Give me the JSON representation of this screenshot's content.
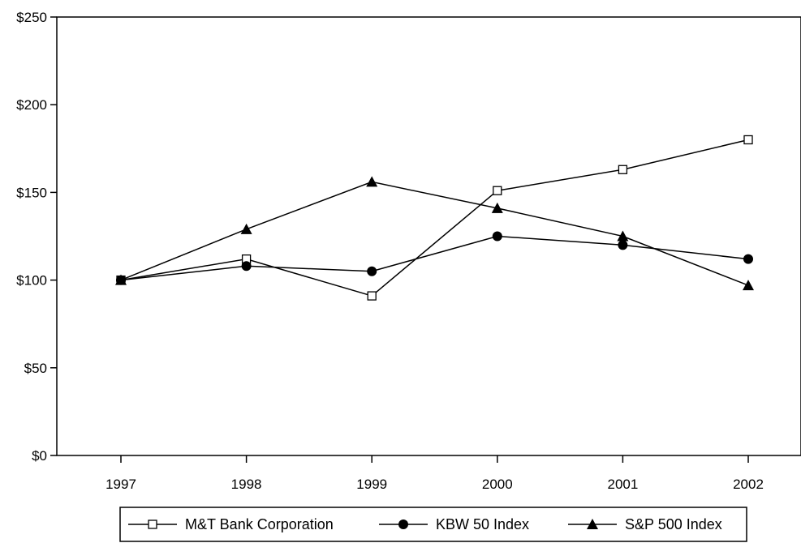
{
  "chart_data": {
    "type": "line",
    "x": [
      "1997",
      "1998",
      "1999",
      "2000",
      "2001",
      "2002"
    ],
    "ylim": [
      0,
      250
    ],
    "yticks": [
      0,
      50,
      100,
      150,
      200,
      250
    ],
    "ytick_labels": [
      "$0",
      "$50",
      "$100",
      "$150",
      "$200",
      "$250"
    ],
    "grid": false,
    "legend_position": "bottom",
    "series": [
      {
        "name": "M&T Bank Corporation",
        "marker": "open-square",
        "values": [
          100,
          112,
          91,
          151,
          163,
          180
        ]
      },
      {
        "name": "KBW 50 Index",
        "marker": "filled-circle",
        "values": [
          100,
          108,
          105,
          125,
          120,
          112
        ]
      },
      {
        "name": "S&P 500 Index",
        "marker": "filled-triangle",
        "values": [
          100,
          129,
          156,
          141,
          125,
          97
        ]
      }
    ],
    "colors": {
      "line": "#000000",
      "background": "#ffffff"
    }
  }
}
